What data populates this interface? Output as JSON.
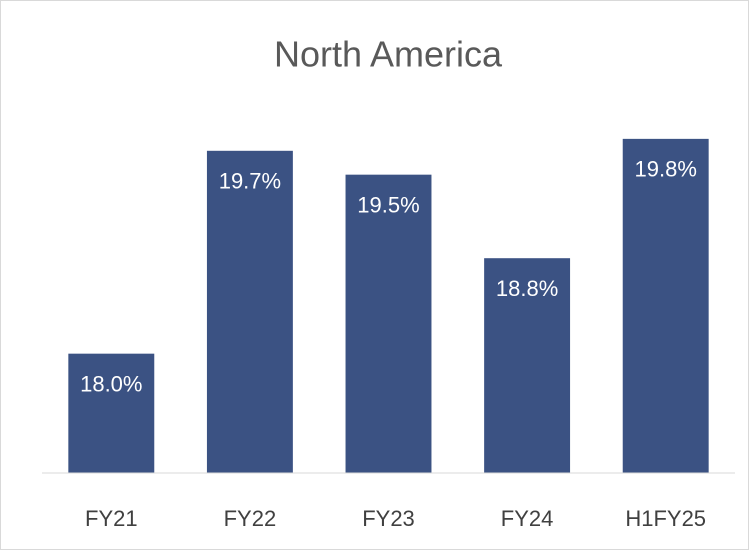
{
  "chart_data": {
    "type": "bar",
    "title": "North America",
    "categories": [
      "FY21",
      "FY22",
      "FY23",
      "FY24",
      "H1FY25"
    ],
    "values": [
      18.0,
      19.7,
      19.5,
      18.8,
      19.8
    ],
    "value_labels": [
      "18.0%",
      "19.7%",
      "19.5%",
      "18.8%",
      "19.8%"
    ],
    "color": "#3b5283",
    "ylim": [
      17,
      20
    ]
  }
}
